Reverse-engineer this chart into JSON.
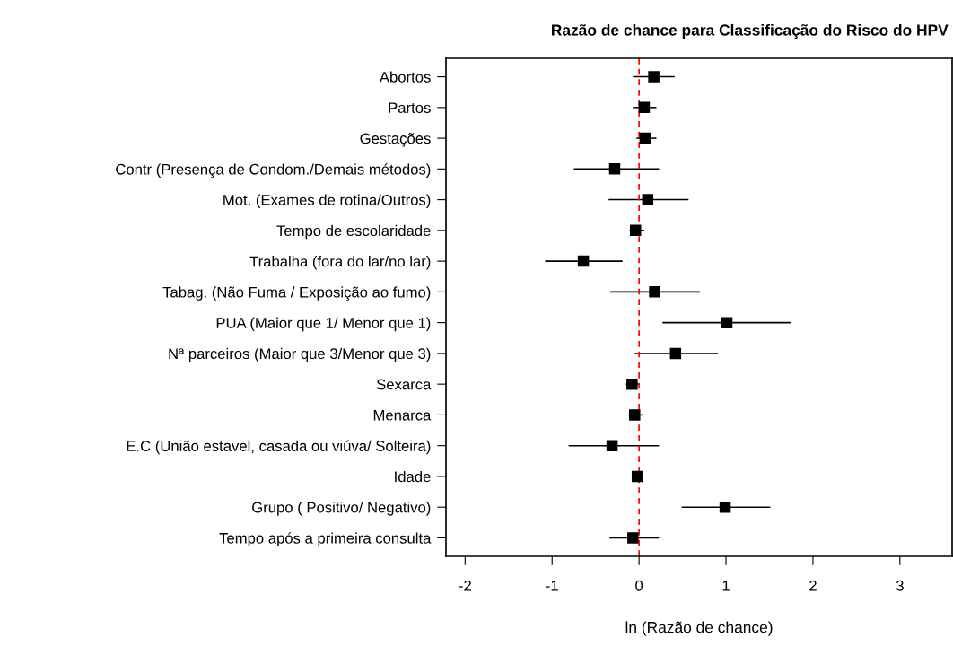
{
  "chart_data": {
    "type": "scatter",
    "orientation": "horizontal",
    "title": "Razão de chance para Classificação do Risco do HPV",
    "xlabel": "ln (Razão de chance)",
    "categories": [
      "Abortos",
      "Partos",
      "Gestações",
      "Contr (Presença de Condom./Demais métodos)",
      "Mot. (Exames de rotina/Outros)",
      "Tempo de escolaridade",
      "Trabalha (fora do lar/no lar)",
      "Tabag. (Não Fuma / Exposição ao fumo)",
      "PUA (Maior que 1/ Menor que 1)",
      "Nª parceiros (Maior que 3/Menor que 3)",
      "Sexarca",
      "Menarca",
      "E.C (União estavel, casada ou viúva/ Solteira)",
      "Idade",
      "Grupo ( Positivo/ Negativo)",
      "Tempo após a primeira consulta"
    ],
    "series": [
      {
        "color": "#000000",
        "values": [
          0.17,
          0.06,
          0.07,
          -0.28,
          0.1,
          -0.04,
          -0.64,
          0.18,
          1.01,
          0.42,
          -0.08,
          -0.05,
          -0.31,
          -0.02,
          0.99,
          -0.07
        ],
        "errors": [
          [
            -0.07,
            0.41
          ],
          [
            -0.07,
            0.2
          ],
          [
            -0.03,
            0.2
          ],
          [
            -0.75,
            0.23
          ],
          [
            -0.35,
            0.57
          ],
          [
            -0.11,
            0.06
          ],
          [
            -1.08,
            -0.19
          ],
          [
            -0.33,
            0.7
          ],
          [
            0.27,
            1.75
          ],
          [
            -0.05,
            0.91
          ],
          [
            -0.15,
            0.0
          ],
          [
            -0.12,
            0.04
          ],
          [
            -0.81,
            0.23
          ],
          null,
          [
            0.49,
            1.51
          ],
          [
            -0.34,
            0.23
          ]
        ]
      }
    ],
    "xlim": [
      -2.22,
      3.6
    ],
    "xticks": [
      -2,
      -1,
      0,
      1,
      2,
      3
    ],
    "ref_lines": [
      {
        "axis": "x",
        "value": 0,
        "color": "#ff0000",
        "line_style": "dashed"
      }
    ],
    "marker": "square",
    "grid": false
  }
}
